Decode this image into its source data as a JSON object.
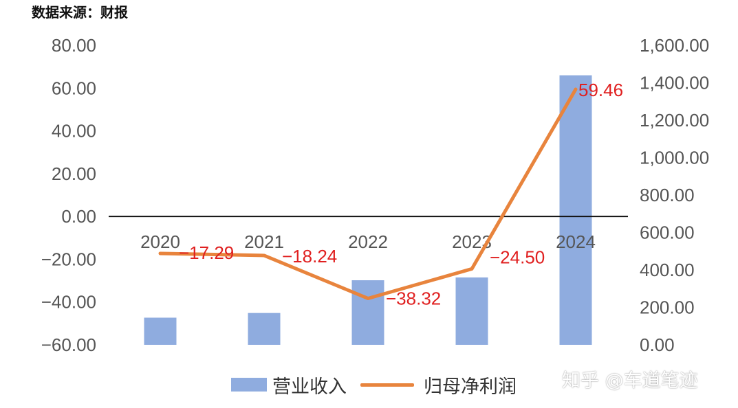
{
  "source_label": "数据来源：财报",
  "watermark": "知乎 @车道笔迹",
  "colors": {
    "bar": "#8facdf",
    "line": "#e8843d",
    "data_label": "#e02020"
  },
  "chart_data": {
    "type": "bar",
    "title": "",
    "categories": [
      "2020",
      "2021",
      "2022",
      "2023",
      "2024"
    ],
    "series": [
      {
        "name": "营业收入",
        "type": "bar",
        "axis": "right",
        "values": [
          145,
          170,
          345,
          360,
          1440
        ]
      },
      {
        "name": "归母净利润",
        "type": "line",
        "axis": "left",
        "values": [
          -17.29,
          -18.24,
          -38.32,
          -24.5,
          59.46
        ],
        "data_labels": [
          "−17.29",
          "−18.24",
          "−38.32",
          "−24.50",
          "59.46"
        ]
      }
    ],
    "left_axis": {
      "range": [
        -60,
        80
      ],
      "ticks": [
        80,
        60,
        40,
        20,
        0,
        -20,
        -40,
        -60
      ],
      "tick_labels": [
        "80.00",
        "60.00",
        "40.00",
        "20.00",
        "0.00",
        "−20.00",
        "−40.00",
        "−60.00"
      ]
    },
    "right_axis": {
      "range": [
        0,
        1600
      ],
      "ticks": [
        1600,
        1400,
        1200,
        1000,
        800,
        600,
        400,
        200,
        0
      ],
      "tick_labels": [
        "1,600.00",
        "1,400.00",
        "1,200.00",
        "1,000.00",
        "800.00",
        "600.00",
        "400.00",
        "200.00",
        "0.00"
      ]
    },
    "grid": false,
    "legend_position": "bottom"
  }
}
